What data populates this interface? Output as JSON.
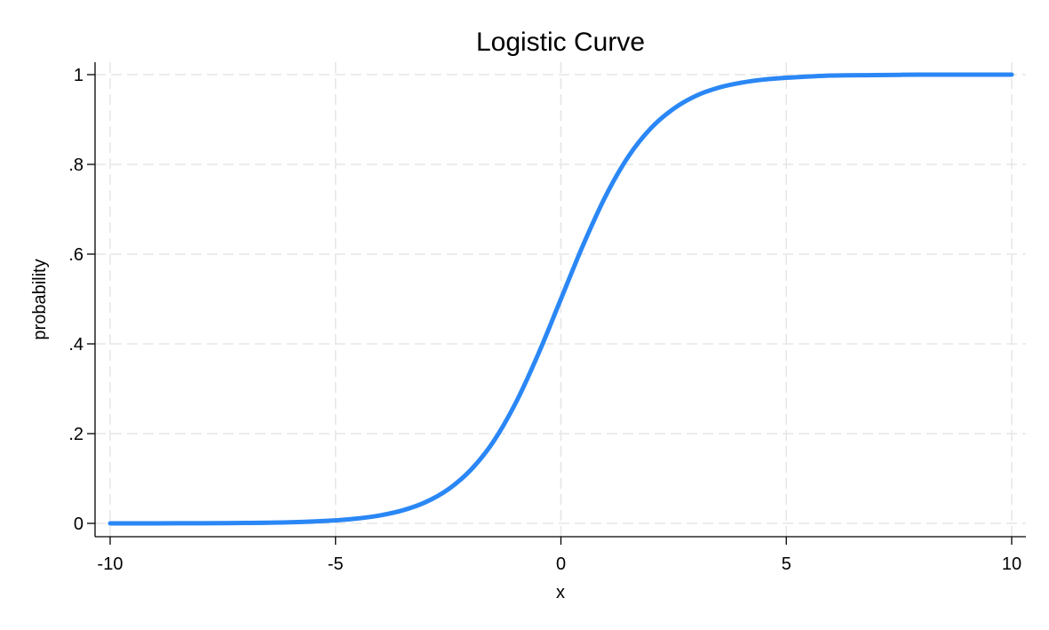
{
  "chart_data": {
    "type": "line",
    "title": "Logistic Curve",
    "xlabel": "x",
    "ylabel": "probability",
    "xlim": [
      -10,
      10
    ],
    "ylim": [
      0,
      1
    ],
    "x_ticks": [
      {
        "value": -10,
        "label": "-10"
      },
      {
        "value": -5,
        "label": "-5"
      },
      {
        "value": 0,
        "label": "0"
      },
      {
        "value": 5,
        "label": "5"
      },
      {
        "value": 10,
        "label": "10"
      }
    ],
    "y_ticks": [
      {
        "value": 0,
        "label": "0"
      },
      {
        "value": 0.2,
        "label": ".2"
      },
      {
        "value": 0.4,
        "label": ".4"
      },
      {
        "value": 0.6,
        "label": ".6"
      },
      {
        "value": 0.8,
        "label": ".8"
      },
      {
        "value": 1,
        "label": "1"
      }
    ],
    "grid": true,
    "legend": "none",
    "series": [
      {
        "color": "#2a87f5",
        "x": [
          -10,
          -9,
          -8,
          -7,
          -6,
          -5,
          -4.5,
          -4,
          -3.5,
          -3,
          -2.5,
          -2,
          -1.5,
          -1,
          -0.5,
          0,
          0.5,
          1,
          1.5,
          2,
          2.5,
          3,
          3.5,
          4,
          4.5,
          5,
          6,
          7,
          8,
          9,
          10
        ],
        "y": [
          4.54e-05,
          0.000123,
          0.000335,
          0.000911,
          0.00247,
          0.00669,
          0.011,
          0.018,
          0.0293,
          0.0474,
          0.0759,
          0.119,
          0.182,
          0.269,
          0.378,
          0.5,
          0.622,
          0.731,
          0.818,
          0.881,
          0.924,
          0.953,
          0.971,
          0.982,
          0.989,
          0.993,
          0.998,
          0.999,
          1.0,
          1.0,
          1.0
        ]
      }
    ]
  }
}
